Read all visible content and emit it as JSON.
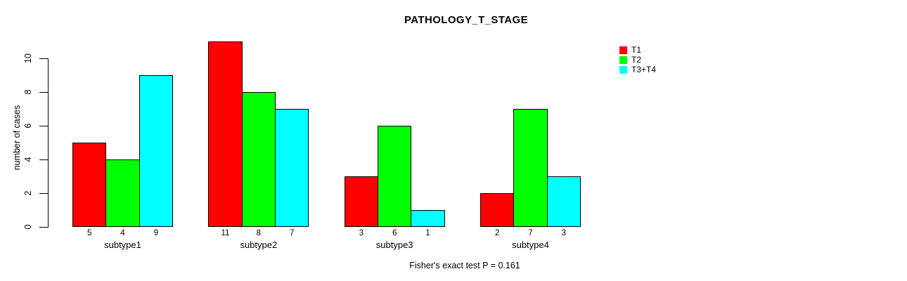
{
  "chart_data": {
    "type": "bar",
    "title": "PATHOLOGY_T_STAGE",
    "xlabel": "",
    "ylabel": "number of cases",
    "categories": [
      "subtype1",
      "subtype2",
      "subtype3",
      "subtype4"
    ],
    "series": [
      {
        "name": "T1",
        "color": "#FF0000",
        "values": [
          5,
          11,
          3,
          2
        ]
      },
      {
        "name": "T2",
        "color": "#00FF00",
        "values": [
          4,
          8,
          6,
          7
        ]
      },
      {
        "name": "T3+T4",
        "color": "#00FFFF",
        "values": [
          9,
          7,
          1,
          3
        ]
      }
    ],
    "bar_value_labels": [
      [
        5,
        11,
        3,
        2
      ],
      [
        4,
        8,
        6,
        7
      ],
      [
        9,
        7,
        1,
        3
      ]
    ],
    "yticks": [
      0,
      2,
      4,
      6,
      8,
      10
    ],
    "ylim": [
      0,
      11
    ],
    "grid": false,
    "legend_position": "top-right",
    "legend_entries": [
      "T1",
      "T2",
      "T3+T4"
    ],
    "annotation": "Fisher's exact test P = 0.161",
    "background_color": "#FFFFFF",
    "bar_border_color": "#000000"
  }
}
